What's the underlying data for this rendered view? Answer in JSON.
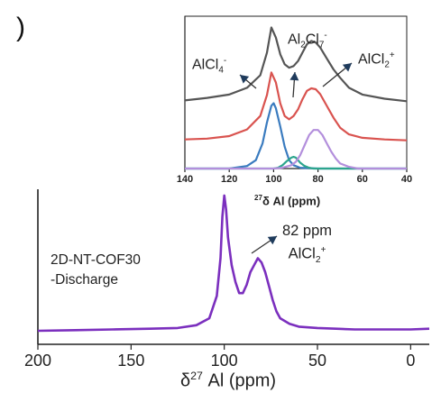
{
  "panel_letter": ")",
  "chart_data": [
    {
      "type": "line",
      "xlabel": "δ27 Al (ppm)",
      "xlim": [
        200,
        -10
      ],
      "x_ticks": [
        "200",
        "150",
        "100",
        "50",
        "0"
      ],
      "y_ticks_visible": false,
      "series": [
        {
          "color": "#7b2fbe",
          "x": [
            200,
            180,
            160,
            140,
            125,
            115,
            108,
            104,
            102,
            101,
            100,
            99,
            98,
            96,
            94,
            92,
            90,
            88,
            86,
            84,
            82,
            80,
            78,
            76,
            74,
            72,
            70,
            65,
            60,
            50,
            40,
            30,
            20,
            10,
            0,
            -10
          ],
          "y": [
            0.03,
            0.035,
            0.04,
            0.045,
            0.05,
            0.07,
            0.12,
            0.28,
            0.55,
            0.85,
            1.0,
            0.9,
            0.7,
            0.5,
            0.38,
            0.3,
            0.3,
            0.36,
            0.45,
            0.5,
            0.55,
            0.52,
            0.45,
            0.35,
            0.25,
            0.17,
            0.12,
            0.08,
            0.06,
            0.05,
            0.045,
            0.04,
            0.04,
            0.04,
            0.04,
            0.045
          ]
        }
      ],
      "annotations": {
        "sample": [
          "2D-NT-COF30",
          "-Discharge"
        ],
        "peak_position": "82 ppm",
        "peak_species": "AlCl2+"
      }
    },
    {
      "type": "line",
      "xlabel": "27δ Al (ppm)",
      "xlim": [
        140,
        40
      ],
      "x_ticks": [
        "140",
        "120",
        "100",
        "80",
        "60",
        "40"
      ],
      "y_ticks_visible": false,
      "series": [
        {
          "color": "#555555",
          "x": [
            140,
            130,
            120,
            112,
            106,
            103,
            101,
            99,
            97,
            95,
            93,
            91,
            89,
            87,
            85,
            83,
            81,
            79,
            76,
            73,
            70,
            66,
            60,
            50,
            40
          ],
          "y": [
            0.05,
            0.08,
            0.12,
            0.2,
            0.35,
            0.62,
            0.92,
            0.8,
            0.6,
            0.48,
            0.44,
            0.46,
            0.52,
            0.62,
            0.72,
            0.76,
            0.74,
            0.68,
            0.55,
            0.42,
            0.32,
            0.2,
            0.12,
            0.07,
            0.04
          ]
        },
        {
          "color": "#d9534f",
          "x": [
            140,
            130,
            120,
            112,
            106,
            103,
            101,
            99,
            97,
            95,
            93,
            91,
            89,
            87,
            85,
            83,
            81,
            79,
            76,
            73,
            70,
            66,
            60,
            50,
            40
          ],
          "y": [
            0.02,
            0.03,
            0.06,
            0.14,
            0.3,
            0.55,
            0.82,
            0.7,
            0.45,
            0.3,
            0.26,
            0.3,
            0.38,
            0.5,
            0.6,
            0.63,
            0.62,
            0.56,
            0.42,
            0.28,
            0.16,
            0.08,
            0.04,
            0.02,
            0.01
          ]
        },
        {
          "color": "#3a7bbf",
          "x": [
            140,
            120,
            112,
            108,
            105,
            103,
            101,
            100,
            99,
            97,
            95,
            93,
            91,
            88,
            80,
            60,
            40
          ],
          "y": [
            0.0,
            0.0,
            0.03,
            0.1,
            0.3,
            0.55,
            0.75,
            0.78,
            0.72,
            0.5,
            0.26,
            0.1,
            0.04,
            0.01,
            0.0,
            0.0,
            0.0
          ]
        },
        {
          "color": "#2ca58d",
          "x": [
            140,
            100,
            98,
            96,
            94,
            92,
            91,
            90,
            89,
            88,
            86,
            84,
            82,
            60,
            40
          ],
          "y": [
            0.0,
            0.0,
            0.01,
            0.04,
            0.09,
            0.13,
            0.14,
            0.13,
            0.1,
            0.07,
            0.03,
            0.01,
            0.0,
            0.0,
            0.0
          ]
        },
        {
          "color": "#b38fdc",
          "x": [
            140,
            100,
            96,
            92,
            90,
            88,
            86,
            84,
            82,
            80,
            78,
            76,
            74,
            72,
            70,
            66,
            62,
            50,
            40
          ],
          "y": [
            0.0,
            0.0,
            0.01,
            0.04,
            0.08,
            0.16,
            0.28,
            0.4,
            0.46,
            0.46,
            0.4,
            0.3,
            0.2,
            0.12,
            0.06,
            0.02,
            0.0,
            0.0,
            0.0
          ]
        }
      ],
      "annotations": {
        "alcl4": "AlCl4-",
        "al2cl7": "Al2Cl7-",
        "alcl2": "AlCl2+"
      }
    }
  ]
}
